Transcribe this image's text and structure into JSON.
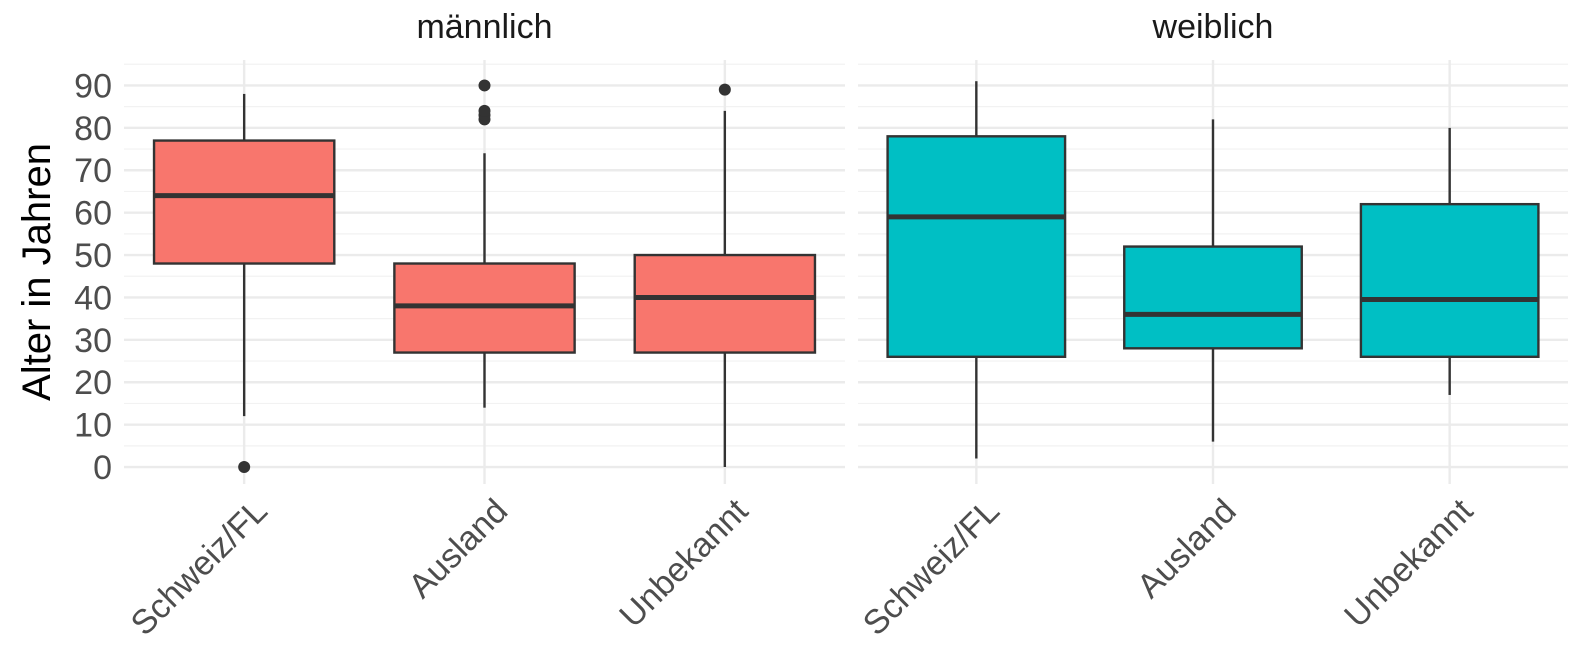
{
  "chart_data": {
    "type": "boxplot",
    "ylabel": "Alter in Jahren",
    "xlabel": "",
    "ylim": [
      -4,
      96
    ],
    "yticks": [
      "0",
      "10",
      "20",
      "30",
      "40",
      "50",
      "60",
      "70",
      "80",
      "90"
    ],
    "grid": true,
    "legend": "none",
    "facets": [
      {
        "title": "männlich",
        "color": "#F8766D",
        "categories": [
          "Schweiz/FL",
          "Ausland",
          "Unbekannt"
        ],
        "boxes": [
          {
            "category": "Schweiz/FL",
            "min": 12,
            "q1": 48,
            "median": 64,
            "q3": 77,
            "max": 88,
            "outliers": [
              0
            ]
          },
          {
            "category": "Ausland",
            "min": 14,
            "q1": 27,
            "median": 38,
            "q3": 48,
            "max": 74,
            "outliers": [
              82,
              83,
              84,
              90
            ]
          },
          {
            "category": "Unbekannt",
            "min": 0,
            "q1": 27,
            "median": 40,
            "q3": 50,
            "max": 84,
            "outliers": [
              89
            ]
          }
        ]
      },
      {
        "title": "weiblich",
        "color": "#00BFC4",
        "categories": [
          "Schweiz/FL",
          "Ausland",
          "Unbekannt"
        ],
        "boxes": [
          {
            "category": "Schweiz/FL",
            "min": 2,
            "q1": 26,
            "median": 59,
            "q3": 78,
            "max": 91,
            "outliers": []
          },
          {
            "category": "Ausland",
            "min": 6,
            "q1": 28,
            "median": 36,
            "q3": 52,
            "max": 82,
            "outliers": []
          },
          {
            "category": "Unbekannt",
            "min": 17,
            "q1": 26,
            "median": 39.5,
            "q3": 62,
            "max": 80,
            "outliers": []
          }
        ]
      }
    ]
  }
}
